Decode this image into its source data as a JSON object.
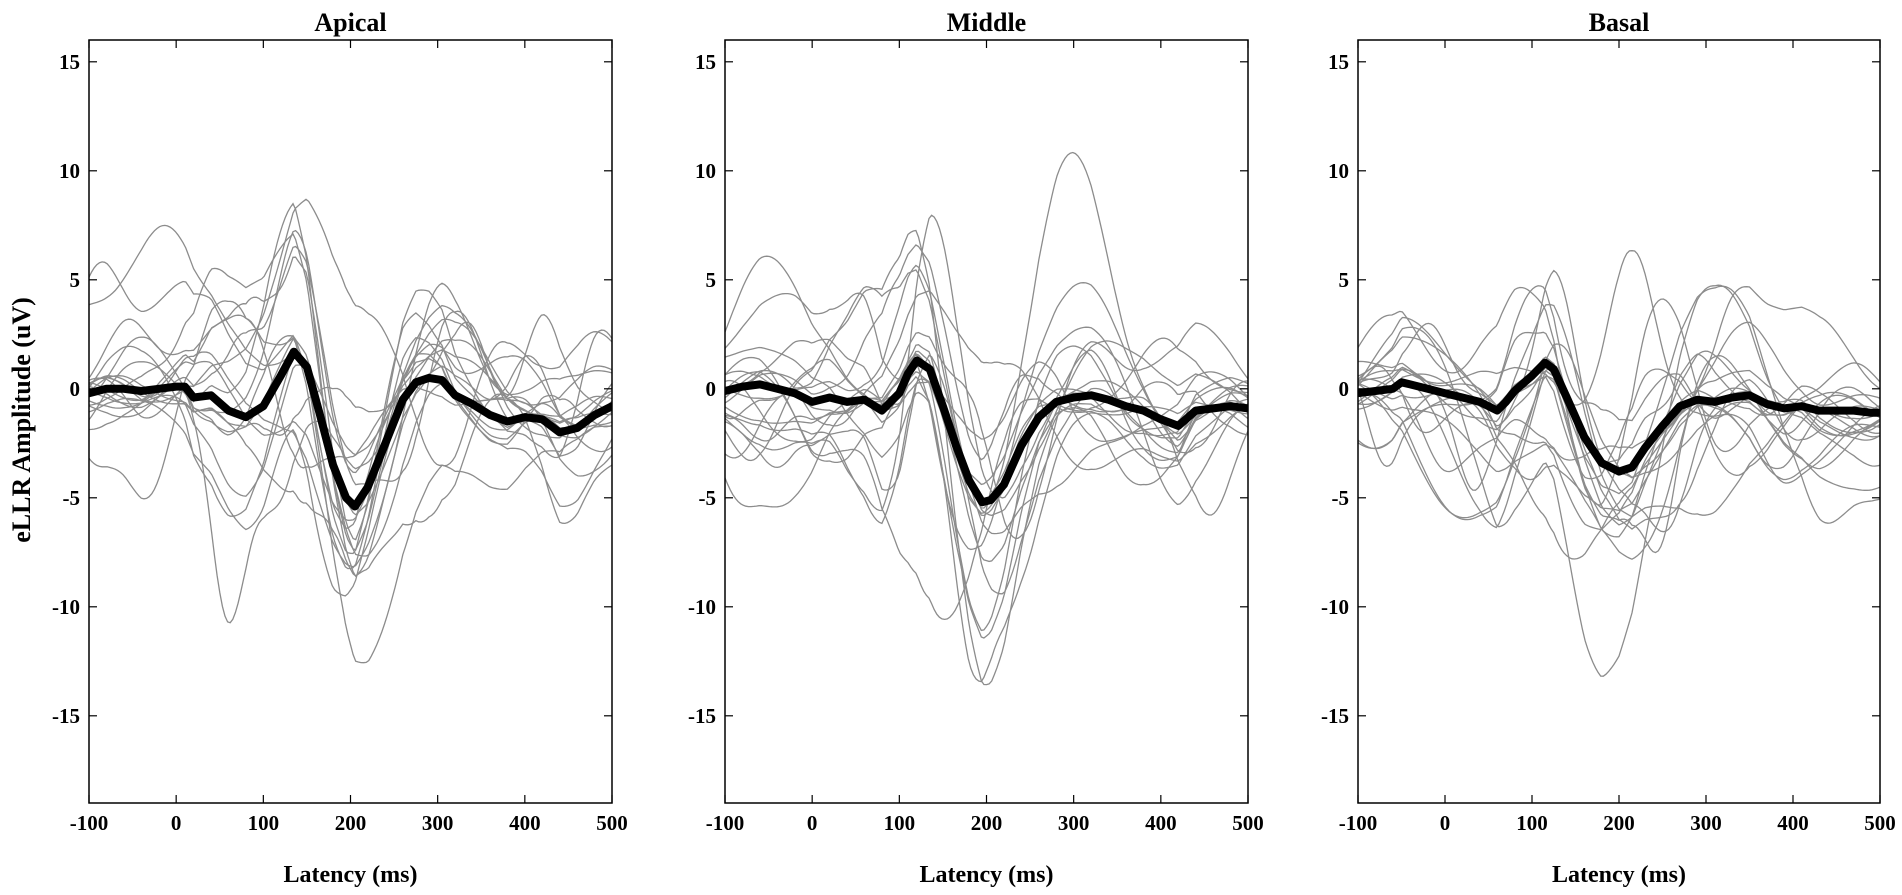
{
  "figure": {
    "ylabel": "eLLR Amplitude (uV)",
    "xlabel": "Latency (ms)"
  },
  "chart_data": [
    {
      "type": "line",
      "title": "Apical",
      "xlabel": "Latency (ms)",
      "ylabel": "eLLR Amplitude (uV)",
      "xlim": [
        -100,
        500
      ],
      "ylim": [
        -19,
        16
      ],
      "xticks": [
        -100,
        0,
        100,
        200,
        300,
        400,
        500
      ],
      "yticks": [
        15,
        10,
        5,
        0,
        -5,
        -10,
        -15
      ],
      "grid": false,
      "individual_color": "#8c8c8c",
      "mean_color": "#000000",
      "individual_traces_count": 20,
      "mean_series": {
        "x": [
          -100,
          -80,
          -60,
          -40,
          -20,
          0,
          10,
          20,
          40,
          60,
          80,
          100,
          120,
          135,
          150,
          165,
          180,
          195,
          205,
          220,
          240,
          260,
          275,
          290,
          305,
          320,
          340,
          360,
          380,
          400,
          420,
          440,
          460,
          480,
          500
        ],
        "y": [
          -0.2,
          0,
          0,
          -0.1,
          0,
          0.1,
          0.1,
          -0.4,
          -0.3,
          -1,
          -1.3,
          -0.8,
          0.6,
          1.7,
          1,
          -1.2,
          -3.5,
          -5,
          -5.4,
          -4.5,
          -2.5,
          -0.5,
          0.3,
          0.5,
          0.4,
          -0.3,
          -0.7,
          -1.2,
          -1.5,
          -1.3,
          -1.4,
          -2,
          -1.8,
          -1.2,
          -0.8
        ]
      }
    },
    {
      "type": "line",
      "title": "Middle",
      "xlabel": "Latency (ms)",
      "ylabel": "",
      "xlim": [
        -100,
        500
      ],
      "ylim": [
        -19,
        16
      ],
      "xticks": [
        -100,
        0,
        100,
        200,
        300,
        400,
        500
      ],
      "yticks": [
        15,
        10,
        5,
        0,
        -5,
        -10,
        -15
      ],
      "grid": false,
      "individual_color": "#8c8c8c",
      "mean_color": "#000000",
      "individual_traces_count": 20,
      "mean_series": {
        "x": [
          -100,
          -80,
          -60,
          -40,
          -20,
          0,
          20,
          40,
          60,
          80,
          100,
          110,
          120,
          135,
          150,
          165,
          180,
          195,
          205,
          220,
          240,
          260,
          280,
          300,
          320,
          340,
          360,
          380,
          400,
          420,
          440,
          460,
          480,
          500
        ],
        "y": [
          -0.1,
          0.1,
          0.2,
          0,
          -0.2,
          -0.6,
          -0.4,
          -0.6,
          -0.5,
          -1,
          -0.2,
          0.7,
          1.3,
          0.9,
          -0.8,
          -2.6,
          -4.2,
          -5.2,
          -5.1,
          -4.4,
          -2.6,
          -1.3,
          -0.6,
          -0.4,
          -0.3,
          -0.5,
          -0.8,
          -1,
          -1.4,
          -1.7,
          -1,
          -0.9,
          -0.8,
          -0.9
        ]
      }
    },
    {
      "type": "line",
      "title": "Basal",
      "xlabel": "Latency (ms)",
      "ylabel": "",
      "xlim": [
        -100,
        500
      ],
      "ylim": [
        -19,
        16
      ],
      "xticks": [
        -100,
        0,
        100,
        200,
        300,
        400,
        500
      ],
      "yticks": [
        15,
        10,
        5,
        0,
        -5,
        -10,
        -15
      ],
      "grid": false,
      "individual_color": "#8c8c8c",
      "mean_color": "#000000",
      "individual_traces_count": 20,
      "mean_series": {
        "x": [
          -100,
          -80,
          -60,
          -50,
          -40,
          -20,
          0,
          20,
          40,
          60,
          70,
          80,
          100,
          115,
          125,
          140,
          160,
          180,
          200,
          215,
          230,
          250,
          270,
          290,
          310,
          330,
          350,
          370,
          390,
          410,
          430,
          450,
          470,
          490,
          500
        ],
        "y": [
          -0.2,
          -0.1,
          0,
          0.3,
          0.2,
          0,
          -0.2,
          -0.4,
          -0.6,
          -1,
          -0.6,
          -0.1,
          0.6,
          1.2,
          0.9,
          -0.4,
          -2.2,
          -3.4,
          -3.8,
          -3.6,
          -2.7,
          -1.7,
          -0.8,
          -0.5,
          -0.6,
          -0.4,
          -0.3,
          -0.7,
          -0.9,
          -0.8,
          -1,
          -1,
          -1,
          -1.1,
          -1.1
        ]
      }
    }
  ]
}
